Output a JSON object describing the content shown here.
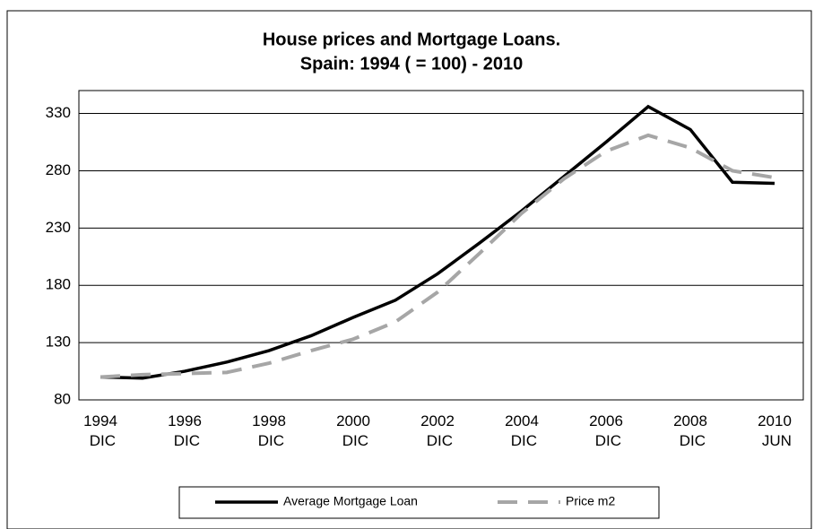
{
  "chart_data": {
    "type": "line",
    "title": "House prices and Mortgage Loans.",
    "subtitle": "Spain: 1994 ( = 100) - 2010",
    "categories": [
      "1994 DIC",
      null,
      "1996 DIC",
      null,
      "1998 DIC",
      null,
      "2000 DIC",
      null,
      "2002 DIC",
      null,
      "2004 DIC",
      null,
      "2006 DIC",
      null,
      "2008 DIC",
      null,
      "2010 JUN"
    ],
    "series": [
      {
        "name": "Average Mortgage Loan",
        "color": "#000000",
        "dash": false,
        "values": [
          100,
          99,
          105,
          113,
          123,
          136,
          152,
          167,
          190,
          217,
          245,
          275,
          305,
          336,
          316,
          270,
          269
        ]
      },
      {
        "name": "Price m2",
        "color": "#a6a6a6",
        "dash": true,
        "values": [
          100,
          102,
          103,
          104,
          112,
          123,
          133,
          148,
          174,
          208,
          243,
          273,
          297,
          311,
          300,
          280,
          274
        ]
      }
    ],
    "ylim": [
      80,
      350
    ],
    "yticks": [
      80,
      130,
      180,
      230,
      280,
      330
    ],
    "grid": true,
    "legend": "bottom"
  }
}
